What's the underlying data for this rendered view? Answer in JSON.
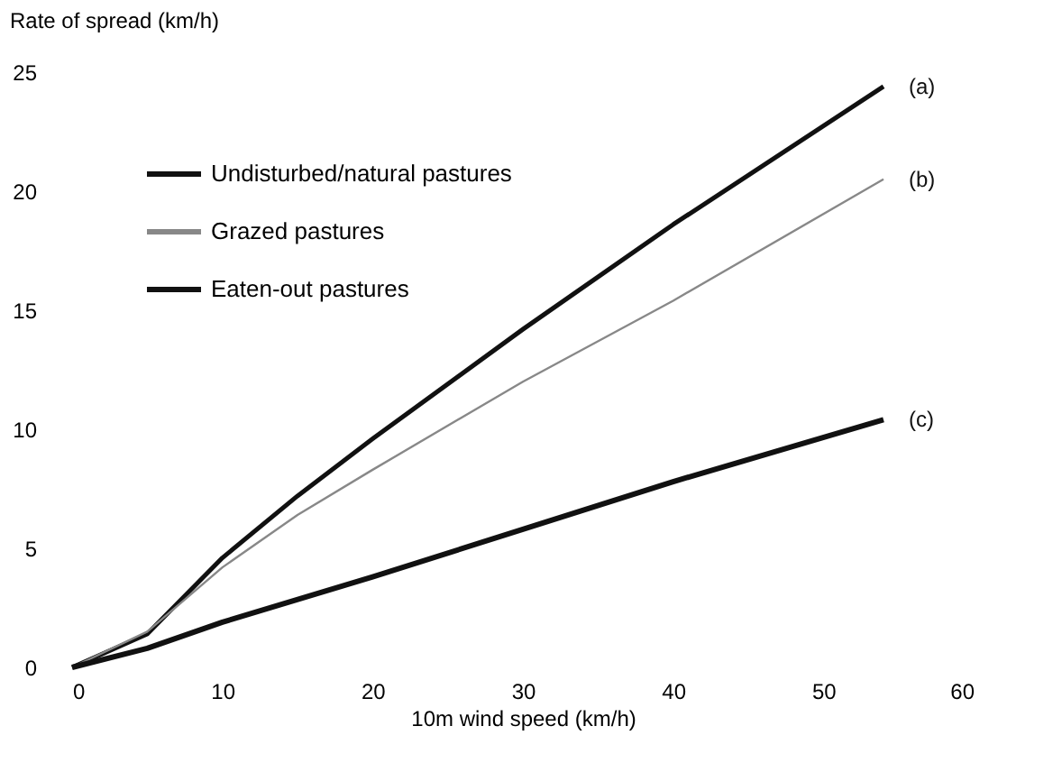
{
  "chart_data": {
    "type": "line",
    "xlabel": "10m wind speed (km/h)",
    "ylabel": "Rate of spread (km/h)",
    "xlim": [
      0,
      60
    ],
    "xticks": [
      0,
      10,
      20,
      30,
      40,
      50,
      60
    ],
    "ylim": [
      0,
      25
    ],
    "yticks": [
      0,
      5,
      10,
      15,
      20,
      25
    ],
    "grid": false,
    "legend": "top left",
    "marker": "none",
    "line_style": "solid",
    "series": [
      {
        "name": "Undisturbed/natural pastures",
        "color": "#111111",
        "x": [
          0,
          5,
          10,
          15,
          20,
          30,
          40,
          54
        ],
        "values": [
          0,
          1.4,
          4.6,
          7.2,
          9.6,
          14.2,
          18.6,
          24.4
        ]
      },
      {
        "name": "Grazed pastures",
        "color": "#888888",
        "x": [
          0,
          5,
          10,
          15,
          20,
          30,
          40,
          54
        ],
        "values": [
          0,
          1.5,
          4.2,
          6.4,
          8.3,
          12.0,
          15.4,
          20.5
        ]
      },
      {
        "name": "Eaten-out pastures",
        "color": "#111111",
        "x": [
          0,
          5,
          10,
          20,
          30,
          40,
          54
        ],
        "values": [
          0,
          0.8,
          1.9,
          3.8,
          5.8,
          7.8,
          10.4
        ]
      }
    ],
    "annotations": [
      "(a)",
      "(b)",
      "(c)"
    ]
  }
}
